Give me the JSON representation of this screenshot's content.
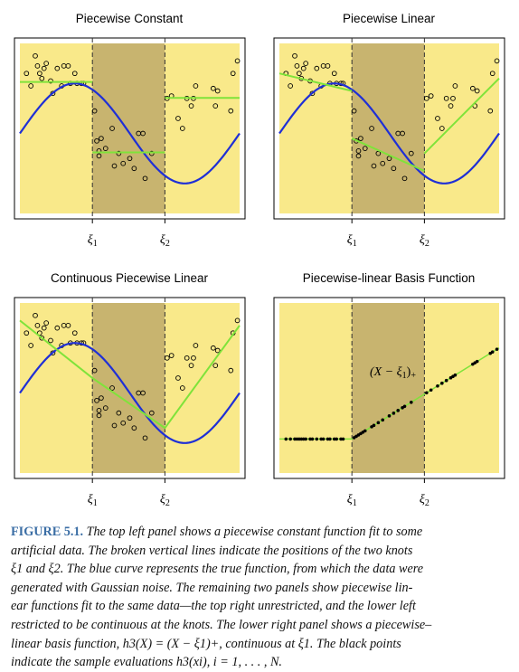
{
  "colors": {
    "yellow": "#f9e98a",
    "shade": "#c8b46f",
    "true_curve": "#1f2fd6",
    "fit": "#7fe33a",
    "points": "#000000",
    "caption_label": "#3b6ea5"
  },
  "chart_data": [
    {
      "type": "scatter",
      "title": "Piecewise Constant",
      "knot_labels": [
        "ξ1",
        "ξ2"
      ],
      "xlim": [
        0,
        1
      ],
      "ylim": [
        -1.6,
        1.8
      ],
      "knots": [
        0.33,
        0.66
      ],
      "grid": false,
      "series": [
        {
          "role": "data-points",
          "x": [
            0.03,
            0.05,
            0.07,
            0.08,
            0.09,
            0.1,
            0.11,
            0.12,
            0.14,
            0.15,
            0.17,
            0.19,
            0.2,
            0.22,
            0.23,
            0.25,
            0.26,
            0.28,
            0.29,
            0.34,
            0.35,
            0.36,
            0.36,
            0.37,
            0.39,
            0.42,
            0.43,
            0.45,
            0.47,
            0.5,
            0.52,
            0.54,
            0.56,
            0.57,
            0.6,
            0.67,
            0.69,
            0.72,
            0.74,
            0.76,
            0.78,
            0.79,
            0.8,
            0.88,
            0.89,
            0.9,
            0.96,
            0.97,
            0.99
          ],
          "y": [
            1.2,
            0.95,
            1.55,
            1.35,
            1.2,
            1.1,
            1.3,
            1.4,
            1.05,
            0.8,
            1.3,
            0.95,
            1.35,
            1.35,
            1.0,
            1.2,
            1.0,
            1.0,
            1.0,
            0.45,
            -0.15,
            -0.35,
            -0.45,
            -0.1,
            -0.3,
            0.1,
            -0.65,
            -0.4,
            -0.6,
            -0.5,
            -0.7,
            0.0,
            0.0,
            -0.9,
            -0.4,
            0.7,
            0.75,
            0.3,
            0.1,
            0.7,
            0.55,
            0.7,
            0.95,
            0.9,
            0.55,
            0.85,
            0.45,
            1.2,
            1.45
          ]
        },
        {
          "role": "true-function",
          "fn": "sin(2*pi*x)",
          "xrange": [
            0.0,
            1.0
          ]
        },
        {
          "role": "fit",
          "segments": [
            [
              0.0,
              0.33,
              1.03,
              1.03
            ],
            [
              0.33,
              0.66,
              -0.38,
              -0.38
            ],
            [
              0.66,
              1.0,
              0.71,
              0.71
            ]
          ]
        }
      ]
    },
    {
      "type": "scatter",
      "title": "Piecewise Linear",
      "knot_labels": [
        "ξ1",
        "ξ2"
      ],
      "xlim": [
        0,
        1
      ],
      "ylim": [
        -1.6,
        1.8
      ],
      "knots": [
        0.33,
        0.66
      ],
      "grid": false,
      "series": [
        {
          "role": "data-points",
          "same_as_panel": 1
        },
        {
          "role": "true-function",
          "fn": "sin(2*pi*x)",
          "xrange": [
            0.0,
            1.0
          ]
        },
        {
          "role": "fit",
          "segments": [
            [
              0.0,
              0.33,
              1.2,
              0.85
            ],
            [
              0.33,
              0.66,
              -0.1,
              -0.75
            ],
            [
              0.66,
              1.0,
              -0.4,
              1.1
            ]
          ]
        }
      ]
    },
    {
      "type": "scatter",
      "title": "Continuous Piecewise Linear",
      "knot_labels": [
        "ξ1",
        "ξ2"
      ],
      "xlim": [
        0,
        1
      ],
      "ylim": [
        -1.6,
        1.8
      ],
      "knots": [
        0.33,
        0.66
      ],
      "grid": false,
      "series": [
        {
          "role": "data-points",
          "same_as_panel": 1
        },
        {
          "role": "true-function",
          "fn": "sin(2*pi*x)",
          "xrange": [
            0.0,
            1.0
          ]
        },
        {
          "role": "fit",
          "polyline": [
            [
              0.0,
              1.45
            ],
            [
              0.33,
              0.3
            ],
            [
              0.66,
              -0.7
            ],
            [
              1.0,
              1.35
            ]
          ]
        }
      ]
    },
    {
      "type": "scatter",
      "title": "Piecewise-linear Basis Function",
      "knot_labels": [
        "ξ1",
        "ξ2"
      ],
      "xlim": [
        0,
        1
      ],
      "ylim": [
        -0.25,
        1.0
      ],
      "knots": [
        0.33,
        0.66
      ],
      "grid": false,
      "annotation": "(X − ξ1)+",
      "series": [
        {
          "role": "basis-function",
          "fn": "max(0, x - 0.33)",
          "xrange": [
            0.0,
            1.0
          ]
        },
        {
          "role": "sample-evaluations",
          "x": [
            0.03,
            0.05,
            0.07,
            0.08,
            0.09,
            0.1,
            0.11,
            0.12,
            0.14,
            0.15,
            0.17,
            0.19,
            0.2,
            0.22,
            0.23,
            0.25,
            0.26,
            0.28,
            0.29,
            0.34,
            0.35,
            0.36,
            0.37,
            0.38,
            0.39,
            0.42,
            0.43,
            0.45,
            0.47,
            0.5,
            0.52,
            0.54,
            0.56,
            0.57,
            0.6,
            0.67,
            0.69,
            0.72,
            0.74,
            0.76,
            0.78,
            0.79,
            0.8,
            0.88,
            0.89,
            0.9,
            0.96,
            0.97,
            0.99
          ],
          "y": [
            0,
            0,
            0,
            0,
            0,
            0,
            0,
            0,
            0,
            0,
            0,
            0,
            0,
            0,
            0,
            0,
            0,
            0,
            0,
            0.01,
            0.02,
            0.03,
            0.04,
            0.05,
            0.06,
            0.09,
            0.1,
            0.12,
            0.14,
            0.17,
            0.19,
            0.21,
            0.23,
            0.24,
            0.27,
            0.34,
            0.36,
            0.39,
            0.41,
            0.43,
            0.45,
            0.46,
            0.47,
            0.55,
            0.56,
            0.57,
            0.63,
            0.64,
            0.66
          ]
        }
      ]
    }
  ],
  "caption": {
    "label": "FIGURE 5.1.",
    "lines": [
      "The top left panel shows a piecewise constant function fit to some",
      "artificial data. The broken vertical lines indicate the positions of the two knots",
      "ξ1 and ξ2. The blue curve represents the true function, from which the data were",
      "generated with Gaussian noise. The remaining two panels show piecewise lin-",
      "ear functions fit to the same data—the top right unrestricted, and the lower left",
      "restricted to be continuous at the knots. The lower right panel shows a piecewise–",
      "linear basis function, h3(X) = (X − ξ1)+, continuous at ξ1. The black points",
      "indicate the sample evaluations h3(xi), i = 1, . . . , N."
    ]
  }
}
